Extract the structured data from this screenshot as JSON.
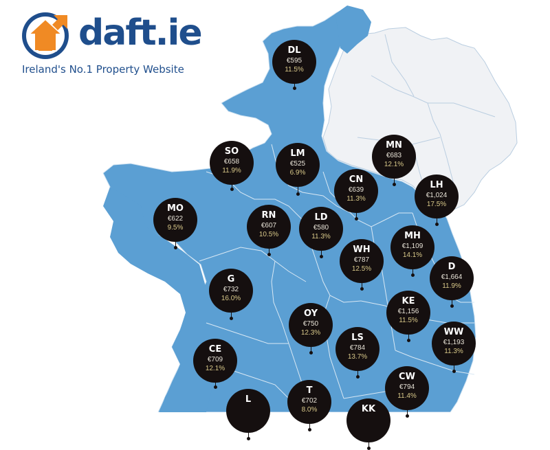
{
  "colors": {
    "land_republic": "#5b9fd3",
    "land_north": "#f0f2f5",
    "border": "#e9f1f8",
    "marker_fill": "#150f0f",
    "brand_blue": "#1f4e8c",
    "brand_orange": "#f08a24"
  },
  "logo": {
    "icon": "house-arrow-icon",
    "wordmark": "daft.ie",
    "tagline": "Ireland's No.1 Property Website"
  },
  "markers": [
    {
      "code": "DL",
      "price": "€595",
      "change": "11.5%"
    },
    {
      "code": "SO",
      "price": "€658",
      "change": "11.9%"
    },
    {
      "code": "LM",
      "price": "€525",
      "change": "6.9%"
    },
    {
      "code": "MN",
      "price": "€683",
      "change": "12.1%"
    },
    {
      "code": "CN",
      "price": "€639",
      "change": "11.3%"
    },
    {
      "code": "LH",
      "price": "€1,024",
      "change": "17.5%"
    },
    {
      "code": "MO",
      "price": "€622",
      "change": "9.5%"
    },
    {
      "code": "RN",
      "price": "€607",
      "change": "10.5%"
    },
    {
      "code": "LD",
      "price": "€580",
      "change": "11.3%"
    },
    {
      "code": "MH",
      "price": "€1,109",
      "change": "14.1%"
    },
    {
      "code": "WH",
      "price": "€787",
      "change": "12.5%"
    },
    {
      "code": "D",
      "price": "€1,664",
      "change": "11.9%"
    },
    {
      "code": "G",
      "price": "€732",
      "change": "16.0%"
    },
    {
      "code": "KE",
      "price": "€1,156",
      "change": "11.5%"
    },
    {
      "code": "OY",
      "price": "€750",
      "change": "12.3%"
    },
    {
      "code": "WW",
      "price": "€1,193",
      "change": "11.3%"
    },
    {
      "code": "LS",
      "price": "€784",
      "change": "13.7%"
    },
    {
      "code": "CE",
      "price": "€709",
      "change": "12.1%"
    },
    {
      "code": "CW",
      "price": "€794",
      "change": "11.4%"
    },
    {
      "code": "T",
      "price": "€702",
      "change": "8.0%"
    },
    {
      "code": "L",
      "price": "",
      "change": ""
    },
    {
      "code": "KK",
      "price": "",
      "change": ""
    }
  ]
}
